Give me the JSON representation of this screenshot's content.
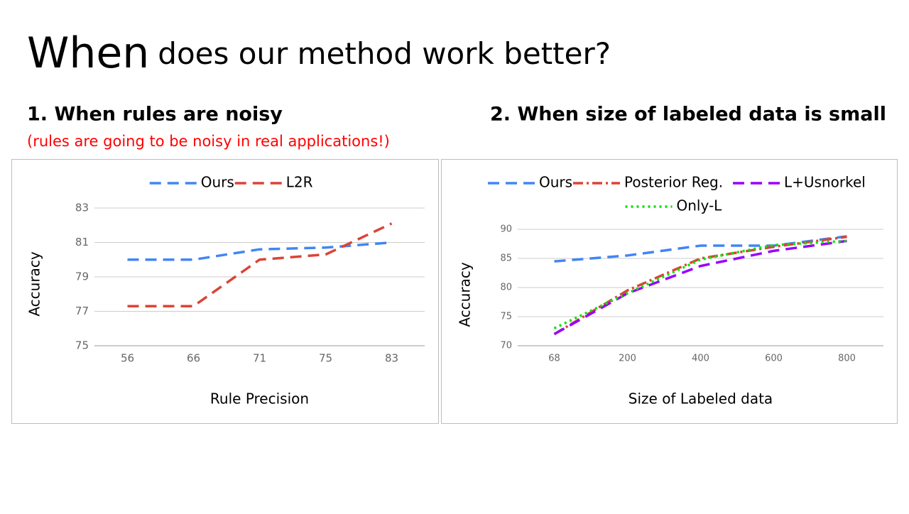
{
  "header": {
    "title_main": "When",
    "title_rest": "does our method work better?"
  },
  "sections": [
    {
      "heading": "1. When rules are noisy",
      "note": "(rules are going to be noisy in real applications!)"
    },
    {
      "heading": "2. When size of labeled data is small"
    }
  ],
  "chart_data": [
    {
      "type": "line",
      "xlabel": "Rule Precision",
      "ylabel": "Accuracy",
      "categories": [
        "56",
        "66",
        "71",
        "75",
        "83"
      ],
      "series": [
        {
          "name": "Ours",
          "color": "#4285f4",
          "line_style": "dashed",
          "values": [
            80,
            80,
            80.6,
            80.7,
            81
          ]
        },
        {
          "name": "L2R",
          "color": "#db4437",
          "line_style": "dashed",
          "values": [
            77.3,
            77.3,
            80,
            80.3,
            82.1
          ]
        }
      ],
      "ylim": [
        75,
        83
      ],
      "yticks": [
        75,
        77,
        79,
        81,
        83
      ],
      "grid": true,
      "legend": "top"
    },
    {
      "type": "line",
      "xlabel": "Size of Labeled data",
      "ylabel": "Accuracy",
      "categories": [
        "68",
        "200",
        "400",
        "600",
        "800"
      ],
      "series": [
        {
          "name": "Ours",
          "color": "#4285f4",
          "line_style": "dashed",
          "values": [
            84.5,
            85.5,
            87.2,
            87.2,
            88.8
          ]
        },
        {
          "name": "Posterior Reg.",
          "color": "#db4437",
          "line_style": "dashdot",
          "values": [
            72,
            79.5,
            85,
            87,
            88.7
          ]
        },
        {
          "name": "L+Usnorkel",
          "color": "#9900ff",
          "line_style": "dashed",
          "values": [
            72,
            79,
            83.7,
            86.3,
            88
          ]
        },
        {
          "name": "Only-L",
          "color": "#00e600",
          "line_style": "dotted",
          "values": [
            73,
            79,
            84.8,
            87.3,
            88
          ]
        }
      ],
      "ylim": [
        70,
        90
      ],
      "yticks": [
        70,
        75,
        80,
        85,
        90
      ],
      "grid": true,
      "legend": "top"
    }
  ]
}
